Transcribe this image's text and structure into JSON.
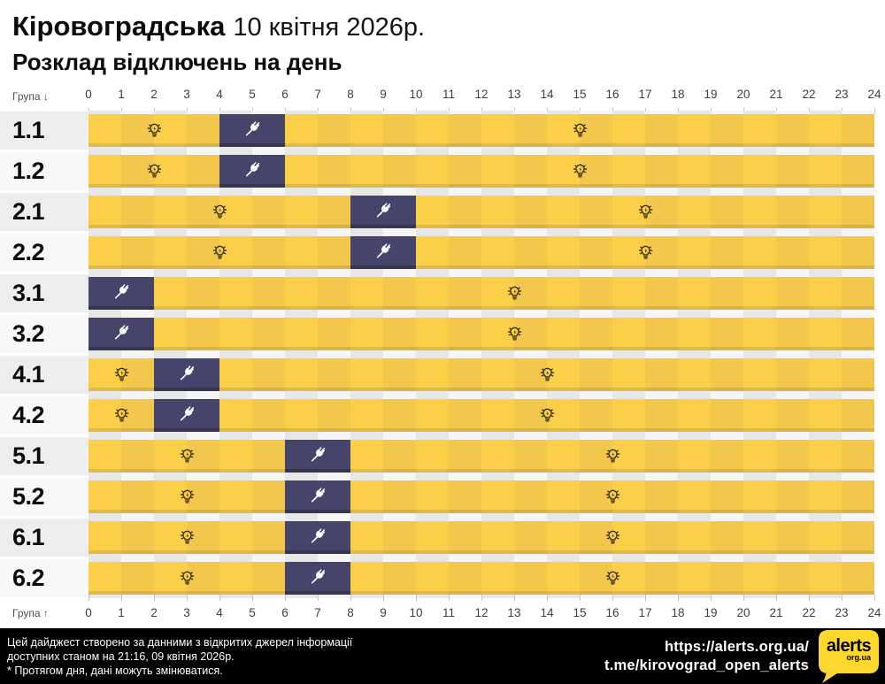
{
  "header": {
    "region": "Кіровоградська",
    "date": "10 квітня 2026р.",
    "subtitle": "Розклад відключень на день"
  },
  "axis": {
    "group_label_top": "Група ↓",
    "group_label_bottom": "Група ↑",
    "hours": [
      0,
      1,
      2,
      3,
      4,
      5,
      6,
      7,
      8,
      9,
      10,
      11,
      12,
      13,
      14,
      15,
      16,
      17,
      18,
      19,
      20,
      21,
      22,
      23,
      24
    ]
  },
  "chart_data": {
    "type": "heatmap",
    "title": "Розклад відключень на день",
    "region": "Кіровоградська",
    "date": "10 квітня 2026р.",
    "x_axis": {
      "range": [
        0,
        24
      ],
      "ticks": [
        0,
        1,
        2,
        3,
        4,
        5,
        6,
        7,
        8,
        9,
        10,
        11,
        12,
        13,
        14,
        15,
        16,
        17,
        18,
        19,
        20,
        21,
        22,
        23,
        24
      ]
    },
    "legend_semantics": {
      "yellow": "power on",
      "navy": "power outage (crossed plug icon)",
      "lamp_marks": "lamp icon shown at this hour tick"
    },
    "colors": {
      "power_on": "#FBCE47",
      "power_on_alt": "#F3C74B",
      "power_off": "#46446A"
    },
    "rows": [
      {
        "group": "1.1",
        "outages": [
          [
            4,
            6
          ]
        ],
        "lamp_marks": [
          2,
          15
        ]
      },
      {
        "group": "1.2",
        "outages": [
          [
            4,
            6
          ]
        ],
        "lamp_marks": [
          2,
          15
        ]
      },
      {
        "group": "2.1",
        "outages": [
          [
            8,
            10
          ]
        ],
        "lamp_marks": [
          4,
          17
        ]
      },
      {
        "group": "2.2",
        "outages": [
          [
            8,
            10
          ]
        ],
        "lamp_marks": [
          4,
          17
        ]
      },
      {
        "group": "3.1",
        "outages": [
          [
            0,
            2
          ]
        ],
        "lamp_marks": [
          13
        ]
      },
      {
        "group": "3.2",
        "outages": [
          [
            0,
            2
          ]
        ],
        "lamp_marks": [
          13
        ]
      },
      {
        "group": "4.1",
        "outages": [
          [
            2,
            4
          ]
        ],
        "lamp_marks": [
          1,
          14
        ]
      },
      {
        "group": "4.2",
        "outages": [
          [
            2,
            4
          ]
        ],
        "lamp_marks": [
          1,
          14
        ]
      },
      {
        "group": "5.1",
        "outages": [
          [
            6,
            8
          ]
        ],
        "lamp_marks": [
          3,
          16
        ]
      },
      {
        "group": "5.2",
        "outages": [
          [
            6,
            8
          ]
        ],
        "lamp_marks": [
          3,
          16
        ]
      },
      {
        "group": "6.1",
        "outages": [
          [
            6,
            8
          ]
        ],
        "lamp_marks": [
          3,
          16
        ]
      },
      {
        "group": "6.2",
        "outages": [
          [
            6,
            8
          ]
        ],
        "lamp_marks": [
          3,
          16
        ]
      }
    ]
  },
  "footer": {
    "line1": "Цей дайджест створено за данними з відкритих джерел інформації",
    "line2": "доступних станом на 21:16, 09 квітня 2026р.",
    "line3": "* Протягом дня, дані можуть змінюватися.",
    "url": "https://alerts.org.ua/",
    "telegram": "t.me/kirovograd_open_alerts",
    "logo_title": "alerts",
    "logo_sub": "org.ua",
    "logo_color": "#FFD82E"
  }
}
